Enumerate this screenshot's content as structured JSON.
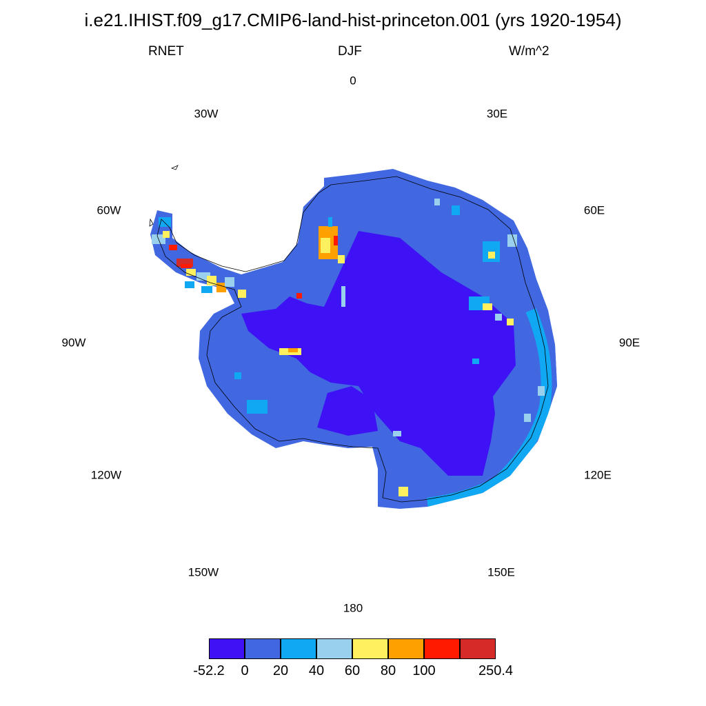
{
  "title": "i.e21.IHIST.f09_g17.CMIP6-land-hist-princeton.001 (yrs 1920-1954)",
  "variable": "RNET",
  "season": "DJF",
  "units": "W/m^2",
  "longitude_labels": [
    "0",
    "30E",
    "60E",
    "90E",
    "120E",
    "150E",
    "180",
    "150W",
    "120W",
    "90W",
    "60W",
    "30W"
  ],
  "colorbar": {
    "colors": [
      "#3f12f5",
      "#4168e0",
      "#10a8f3",
      "#99d0ee",
      "#fff060",
      "#fda000",
      "#ff1a00",
      "#d42a28"
    ],
    "labels": [
      "-52.2",
      "0",
      "20",
      "40",
      "60",
      "80",
      "100",
      "250.4"
    ]
  }
}
